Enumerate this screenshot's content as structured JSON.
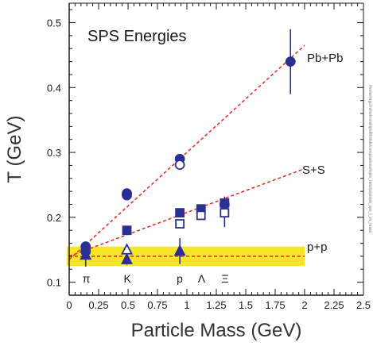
{
  "chart_data": {
    "type": "scatter",
    "annotation": "SPS Energies",
    "xlabel": "Particle Mass (GeV)",
    "ylabel": "T (GeV)",
    "xlim": [
      0,
      2.5
    ],
    "ylim": [
      0.08,
      0.53
    ],
    "x_ticks": [
      "0",
      "0.25",
      "0.5",
      "0.75",
      "1",
      "1.25",
      "1.5",
      "1.75",
      "2",
      "2.25",
      "2.5"
    ],
    "y_ticks": [
      "0.1",
      "0.2",
      "0.3",
      "0.4",
      "0.5"
    ],
    "grid": false,
    "series_labels": [
      "Pb+Pb",
      "S+S",
      "p+p"
    ],
    "particle_labels": [
      {
        "text": "π",
        "x": 0.14
      },
      {
        "text": "K",
        "x": 0.49
      },
      {
        "text": "p",
        "x": 0.94
      },
      {
        "text": "Λ",
        "x": 1.12
      },
      {
        "text": "Ξ",
        "x": 1.32
      }
    ],
    "band": {
      "color": "#f5e62a",
      "ymin": 0.125,
      "ymax": 0.155,
      "xmin": -0.02,
      "xmax": 2.0
    },
    "fit_lines": [
      {
        "series": "Pb+Pb",
        "x": [
          0.0,
          2.0
        ],
        "y": [
          0.135,
          0.465
        ]
      },
      {
        "series": "S+S",
        "x": [
          0.0,
          2.0
        ],
        "y": [
          0.14,
          0.275
        ]
      },
      {
        "series": "p+p",
        "x": [
          0.0,
          2.0
        ],
        "y": [
          0.14,
          0.14
        ]
      }
    ],
    "series": [
      {
        "key": "PbPb_filled_circle",
        "marker": "circle",
        "filled": true,
        "points": [
          {
            "x": 0.14,
            "y": 0.155,
            "err": 0.008
          },
          {
            "x": 0.14,
            "y": 0.148,
            "err": 0.008
          },
          {
            "x": 0.49,
            "y": 0.237,
            "err": 0.0
          },
          {
            "x": 0.49,
            "y": 0.234,
            "err": 0.0
          },
          {
            "x": 0.94,
            "y": 0.29,
            "err": 0.0
          },
          {
            "x": 1.32,
            "y": 0.22,
            "err": 0.012
          },
          {
            "x": 1.88,
            "y": 0.44,
            "err": 0.05
          }
        ]
      },
      {
        "key": "PbPb_open_circle",
        "marker": "circle",
        "filled": false,
        "points": [
          {
            "x": 0.94,
            "y": 0.281,
            "err": 0.0
          }
        ]
      },
      {
        "key": "SS_filled_square",
        "marker": "square",
        "filled": true,
        "points": [
          {
            "x": 0.14,
            "y": 0.15,
            "err": 0.008
          },
          {
            "x": 0.49,
            "y": 0.18,
            "err": 0.0
          },
          {
            "x": 0.94,
            "y": 0.207,
            "err": 0.0
          },
          {
            "x": 1.12,
            "y": 0.213,
            "err": 0.0
          },
          {
            "x": 1.32,
            "y": 0.222,
            "err": 0.0
          }
        ]
      },
      {
        "key": "SS_open_square",
        "marker": "square",
        "filled": false,
        "points": [
          {
            "x": 0.94,
            "y": 0.19,
            "err": 0.0
          },
          {
            "x": 1.12,
            "y": 0.203,
            "err": 0.0
          },
          {
            "x": 1.32,
            "y": 0.207,
            "err": 0.022
          }
        ]
      },
      {
        "key": "pp_filled_triangle",
        "marker": "triangle",
        "filled": true,
        "points": [
          {
            "x": 0.14,
            "y": 0.142,
            "err": 0.018
          },
          {
            "x": 0.49,
            "y": 0.135,
            "err": 0.008
          },
          {
            "x": 0.94,
            "y": 0.148,
            "err": 0.02
          }
        ]
      },
      {
        "key": "pp_open_triangle",
        "marker": "triangle",
        "filled": false,
        "points": [
          {
            "x": 0.49,
            "y": 0.15,
            "err": 0.0
          }
        ]
      }
    ],
    "colors": {
      "marker": "#2a2f96",
      "fit": "#e8322a",
      "band": "#f5e62a",
      "axis": "#1a1a1a"
    },
    "side_text": "/home/mgc/ini/hetronsl/qm98/slide/compilations/triple_ratio/pi/pb/pb_sps_t_vs_mass"
  }
}
